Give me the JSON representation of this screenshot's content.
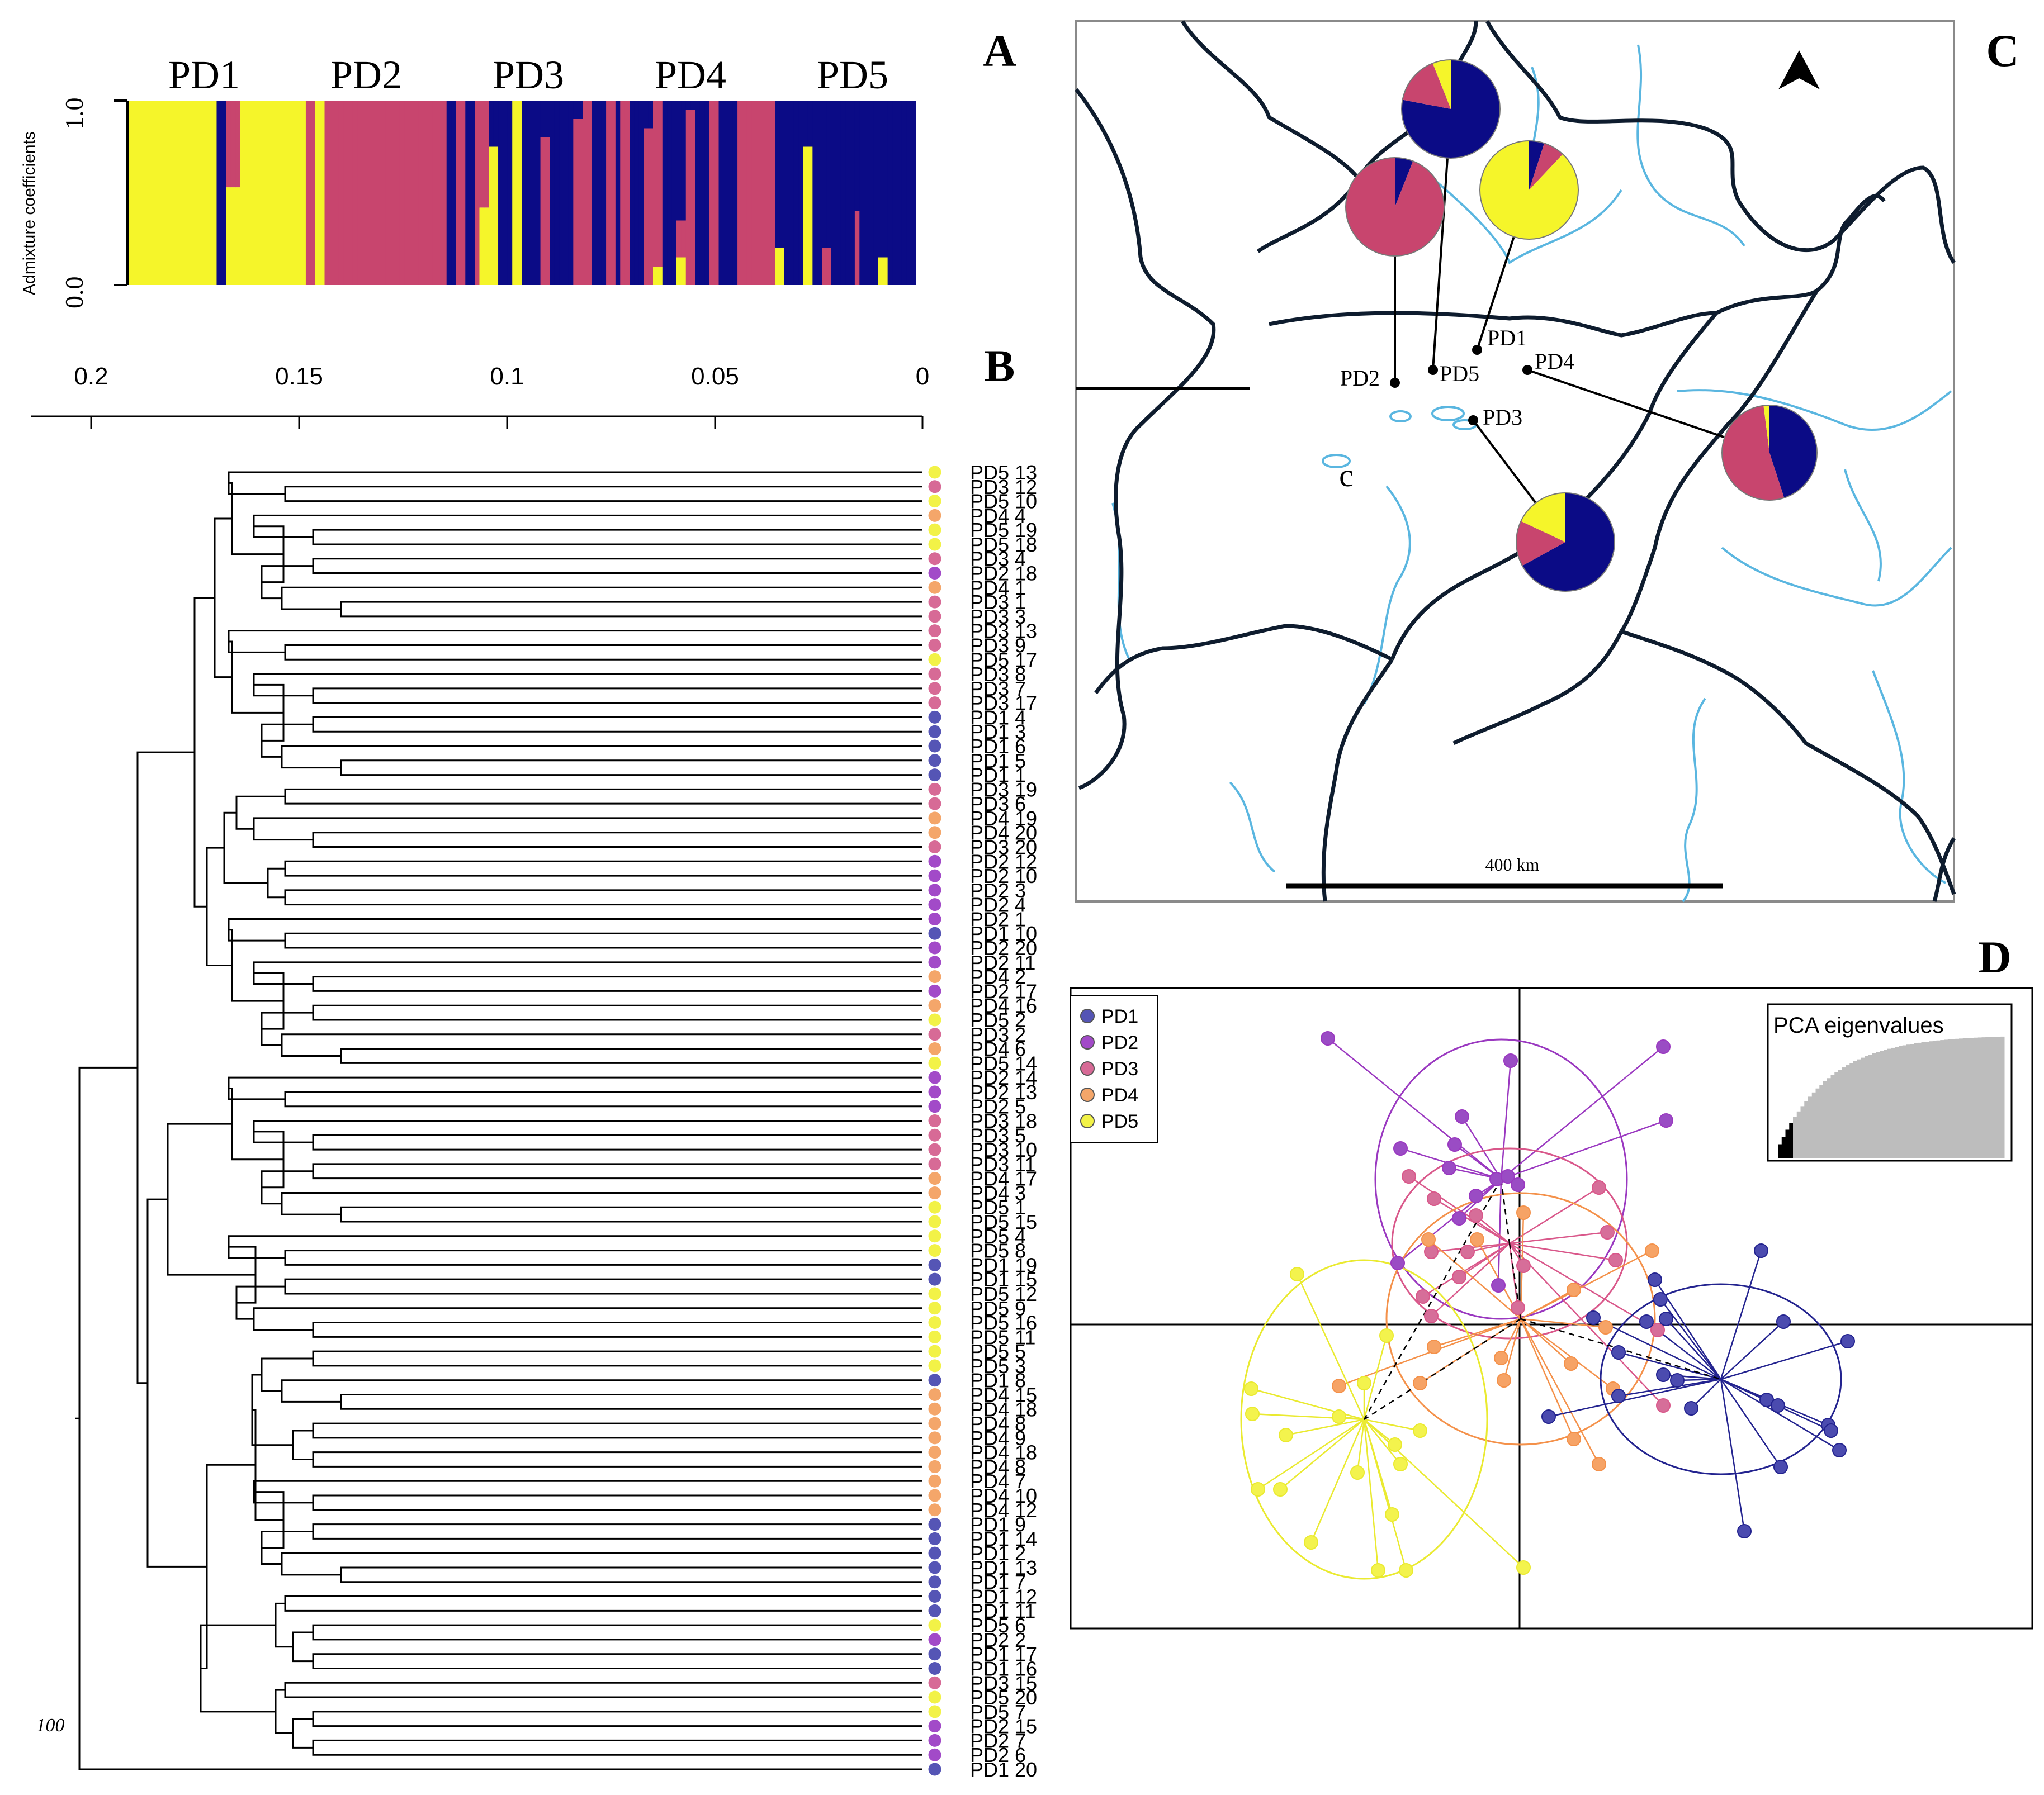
{
  "panel_labels": {
    "a": "A",
    "b": "B",
    "c": "C",
    "d": "D"
  },
  "colors": {
    "PD1": "#0b0b86",
    "PD2": "#c8456e",
    "PD3": "#c8456e",
    "PD4": "#c8456e",
    "PD5": "#f5f52a",
    "dot_PD1": "#5555b5",
    "dot_PD2": "#a24ac8",
    "dot_PD3": "#d76a96",
    "dot_PD4": "#f4a66a",
    "dot_PD5": "#f2f247"
  },
  "admixture": {
    "ylabel": "Admixture coefficients",
    "y_ticks": [
      "0.0",
      "1.0"
    ],
    "groups": [
      "PD1",
      "PD2",
      "PD3",
      "PD4",
      "PD5"
    ]
  },
  "tree_axis": {
    "ticks": [
      "0.2",
      "0.15",
      "0.1",
      "0.05",
      "0"
    ],
    "bootstrap": "100"
  },
  "tree_leaves": [
    {
      "label": "PD5 13",
      "g": "PD5"
    },
    {
      "label": "PD3 12",
      "g": "PD3"
    },
    {
      "label": "PD5 10",
      "g": "PD5"
    },
    {
      "label": "PD4 4",
      "g": "PD4"
    },
    {
      "label": "PD5 19",
      "g": "PD5"
    },
    {
      "label": "PD5 18",
      "g": "PD5"
    },
    {
      "label": "PD3 4",
      "g": "PD3"
    },
    {
      "label": "PD2 18",
      "g": "PD2"
    },
    {
      "label": "PD4 1",
      "g": "PD4"
    },
    {
      "label": "PD3 1",
      "g": "PD3"
    },
    {
      "label": "PD3 3",
      "g": "PD3"
    },
    {
      "label": "PD3 13",
      "g": "PD3"
    },
    {
      "label": "PD3 9",
      "g": "PD3"
    },
    {
      "label": "PD5 17",
      "g": "PD5"
    },
    {
      "label": "PD3 8",
      "g": "PD3"
    },
    {
      "label": "PD3 7",
      "g": "PD3"
    },
    {
      "label": "PD3 17",
      "g": "PD3"
    },
    {
      "label": "PD1 4",
      "g": "PD1"
    },
    {
      "label": "PD1 3",
      "g": "PD1"
    },
    {
      "label": "PD1 6",
      "g": "PD1"
    },
    {
      "label": "PD1 5",
      "g": "PD1"
    },
    {
      "label": "PD1 1",
      "g": "PD1"
    },
    {
      "label": "PD3 19",
      "g": "PD3"
    },
    {
      "label": "PD3 6",
      "g": "PD3"
    },
    {
      "label": "PD4 19",
      "g": "PD4"
    },
    {
      "label": "PD4 20",
      "g": "PD4"
    },
    {
      "label": "PD3 20",
      "g": "PD3"
    },
    {
      "label": "PD2 12",
      "g": "PD2"
    },
    {
      "label": "PD2 10",
      "g": "PD2"
    },
    {
      "label": "PD2 3",
      "g": "PD2"
    },
    {
      "label": "PD2 4",
      "g": "PD2"
    },
    {
      "label": "PD2 1",
      "g": "PD2"
    },
    {
      "label": "PD1 10",
      "g": "PD1"
    },
    {
      "label": "PD2 20",
      "g": "PD2"
    },
    {
      "label": "PD2 11",
      "g": "PD2"
    },
    {
      "label": "PD4 2",
      "g": "PD4"
    },
    {
      "label": "PD2 17",
      "g": "PD2"
    },
    {
      "label": "PD4 16",
      "g": "PD4"
    },
    {
      "label": "PD5 2",
      "g": "PD5"
    },
    {
      "label": "PD3 2",
      "g": "PD3"
    },
    {
      "label": "PD4 6",
      "g": "PD4"
    },
    {
      "label": "PD5 14",
      "g": "PD5"
    },
    {
      "label": "PD2 14",
      "g": "PD2"
    },
    {
      "label": "PD2 13",
      "g": "PD2"
    },
    {
      "label": "PD2 5",
      "g": "PD2"
    },
    {
      "label": "PD3 18",
      "g": "PD3"
    },
    {
      "label": "PD3 5",
      "g": "PD3"
    },
    {
      "label": "PD3 10",
      "g": "PD3"
    },
    {
      "label": "PD3 11",
      "g": "PD3"
    },
    {
      "label": "PD4 17",
      "g": "PD4"
    },
    {
      "label": "PD4 3",
      "g": "PD4"
    },
    {
      "label": "PD5 1",
      "g": "PD5"
    },
    {
      "label": "PD5 15",
      "g": "PD5"
    },
    {
      "label": "PD5 4",
      "g": "PD5"
    },
    {
      "label": "PD5 8",
      "g": "PD5"
    },
    {
      "label": "PD1 19",
      "g": "PD1"
    },
    {
      "label": "PD1 15",
      "g": "PD1"
    },
    {
      "label": "PD5 12",
      "g": "PD5"
    },
    {
      "label": "PD5 9",
      "g": "PD5"
    },
    {
      "label": "PD5 16",
      "g": "PD5"
    },
    {
      "label": "PD5 11",
      "g": "PD5"
    },
    {
      "label": "PD5 5",
      "g": "PD5"
    },
    {
      "label": "PD5 3",
      "g": "PD5"
    },
    {
      "label": "PD1 8",
      "g": "PD1"
    },
    {
      "label": "PD4 15",
      "g": "PD4"
    },
    {
      "label": "PD4 18",
      "g": "PD4"
    },
    {
      "label": "PD4 8",
      "g": "PD4"
    },
    {
      "label": "PD4 9",
      "g": "PD4"
    },
    {
      "label": "PD4 18",
      "g": "PD4"
    },
    {
      "label": "PD4 8",
      "g": "PD4"
    },
    {
      "label": "PD4 7",
      "g": "PD4"
    },
    {
      "label": "PD4 10",
      "g": "PD4"
    },
    {
      "label": "PD4 12",
      "g": "PD4"
    },
    {
      "label": "PD1 9",
      "g": "PD1"
    },
    {
      "label": "PD1 14",
      "g": "PD1"
    },
    {
      "label": "PD1 2",
      "g": "PD1"
    },
    {
      "label": "PD1 13",
      "g": "PD1"
    },
    {
      "label": "PD1 7",
      "g": "PD1"
    },
    {
      "label": "PD1 12",
      "g": "PD1"
    },
    {
      "label": "PD1 11",
      "g": "PD1"
    },
    {
      "label": "PD5 6",
      "g": "PD5"
    },
    {
      "label": "PD2 2",
      "g": "PD2"
    },
    {
      "label": "PD1 17",
      "g": "PD1"
    },
    {
      "label": "PD1 16",
      "g": "PD1"
    },
    {
      "label": "PD3 15",
      "g": "PD3"
    },
    {
      "label": "PD5 20",
      "g": "PD5"
    },
    {
      "label": "PD5 7",
      "g": "PD5"
    },
    {
      "label": "PD2 15",
      "g": "PD2"
    },
    {
      "label": "PD2 7",
      "g": "PD2"
    },
    {
      "label": "PD2 6",
      "g": "PD2"
    },
    {
      "label": "PD1 20",
      "g": "PD1"
    }
  ],
  "map": {
    "sites": [
      "PD1",
      "PD2",
      "PD3",
      "PD4",
      "PD5"
    ],
    "scale_label": "400 km",
    "place_label": "c",
    "pies": [
      {
        "site": "PD5",
        "shares": {
          "PD1": 0.78,
          "PD2": 0.16,
          "PD5": 0.06
        }
      },
      {
        "site": "PD2",
        "shares": {
          "PD1": 0.06,
          "PD2": 0.94
        }
      },
      {
        "site": "PD1",
        "shares": {
          "PD1": 0.05,
          "PD2": 0.07,
          "PD5": 0.88
        }
      },
      {
        "site": "PD4",
        "shares": {
          "PD1": 0.45,
          "PD2": 0.53,
          "PD5": 0.02
        }
      },
      {
        "site": "PD3",
        "shares": {
          "PD1": 0.67,
          "PD2": 0.15,
          "PD5": 0.18
        }
      }
    ]
  },
  "pca": {
    "legend": [
      "PD1",
      "PD2",
      "PD3",
      "PD4",
      "PD5"
    ],
    "inset_title": "PCA eigenvalues"
  }
}
